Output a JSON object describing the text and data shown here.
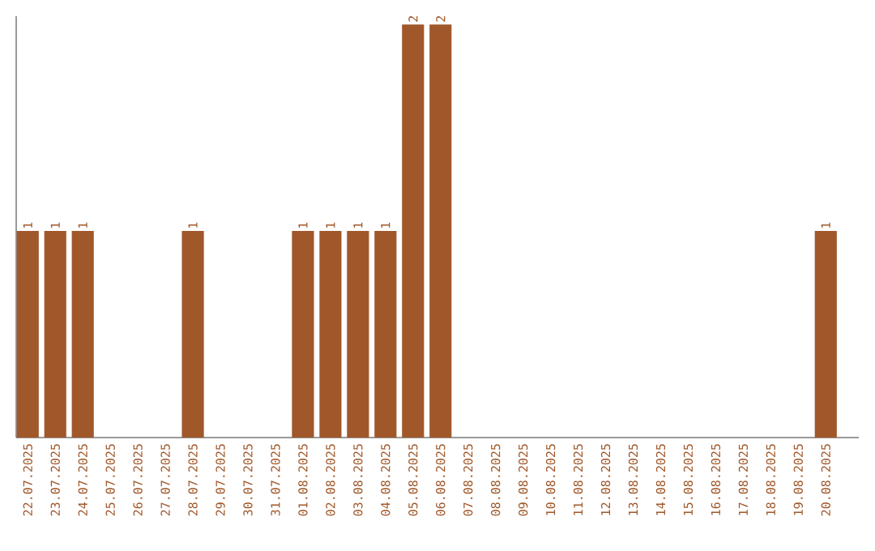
{
  "chart_data": {
    "type": "bar",
    "categories": [
      "22.07.2025",
      "23.07.2025",
      "24.07.2025",
      "25.07.2025",
      "26.07.2025",
      "27.07.2025",
      "28.07.2025",
      "29.07.2025",
      "30.07.2025",
      "31.07.2025",
      "01.08.2025",
      "02.08.2025",
      "03.08.2025",
      "04.08.2025",
      "05.08.2025",
      "06.08.2025",
      "07.08.2025",
      "08.08.2025",
      "09.08.2025",
      "10.08.2025",
      "11.08.2025",
      "12.08.2025",
      "13.08.2025",
      "14.08.2025",
      "15.08.2025",
      "16.08.2025",
      "17.08.2025",
      "18.08.2025",
      "19.08.2025",
      "20.08.2025"
    ],
    "values": [
      1,
      1,
      1,
      0,
      0,
      0,
      1,
      0,
      0,
      0,
      1,
      1,
      1,
      1,
      2,
      2,
      0,
      0,
      0,
      0,
      0,
      0,
      0,
      0,
      0,
      0,
      0,
      0,
      0,
      1
    ],
    "value_labels": [
      "1",
      "1",
      "1",
      null,
      null,
      null,
      "1",
      null,
      null,
      null,
      "1",
      "1",
      "1",
      "1",
      "2",
      "2",
      null,
      null,
      null,
      null,
      null,
      null,
      null,
      null,
      null,
      null,
      null,
      null,
      null,
      "1"
    ],
    "color": "#a0582a",
    "grid": false
  }
}
